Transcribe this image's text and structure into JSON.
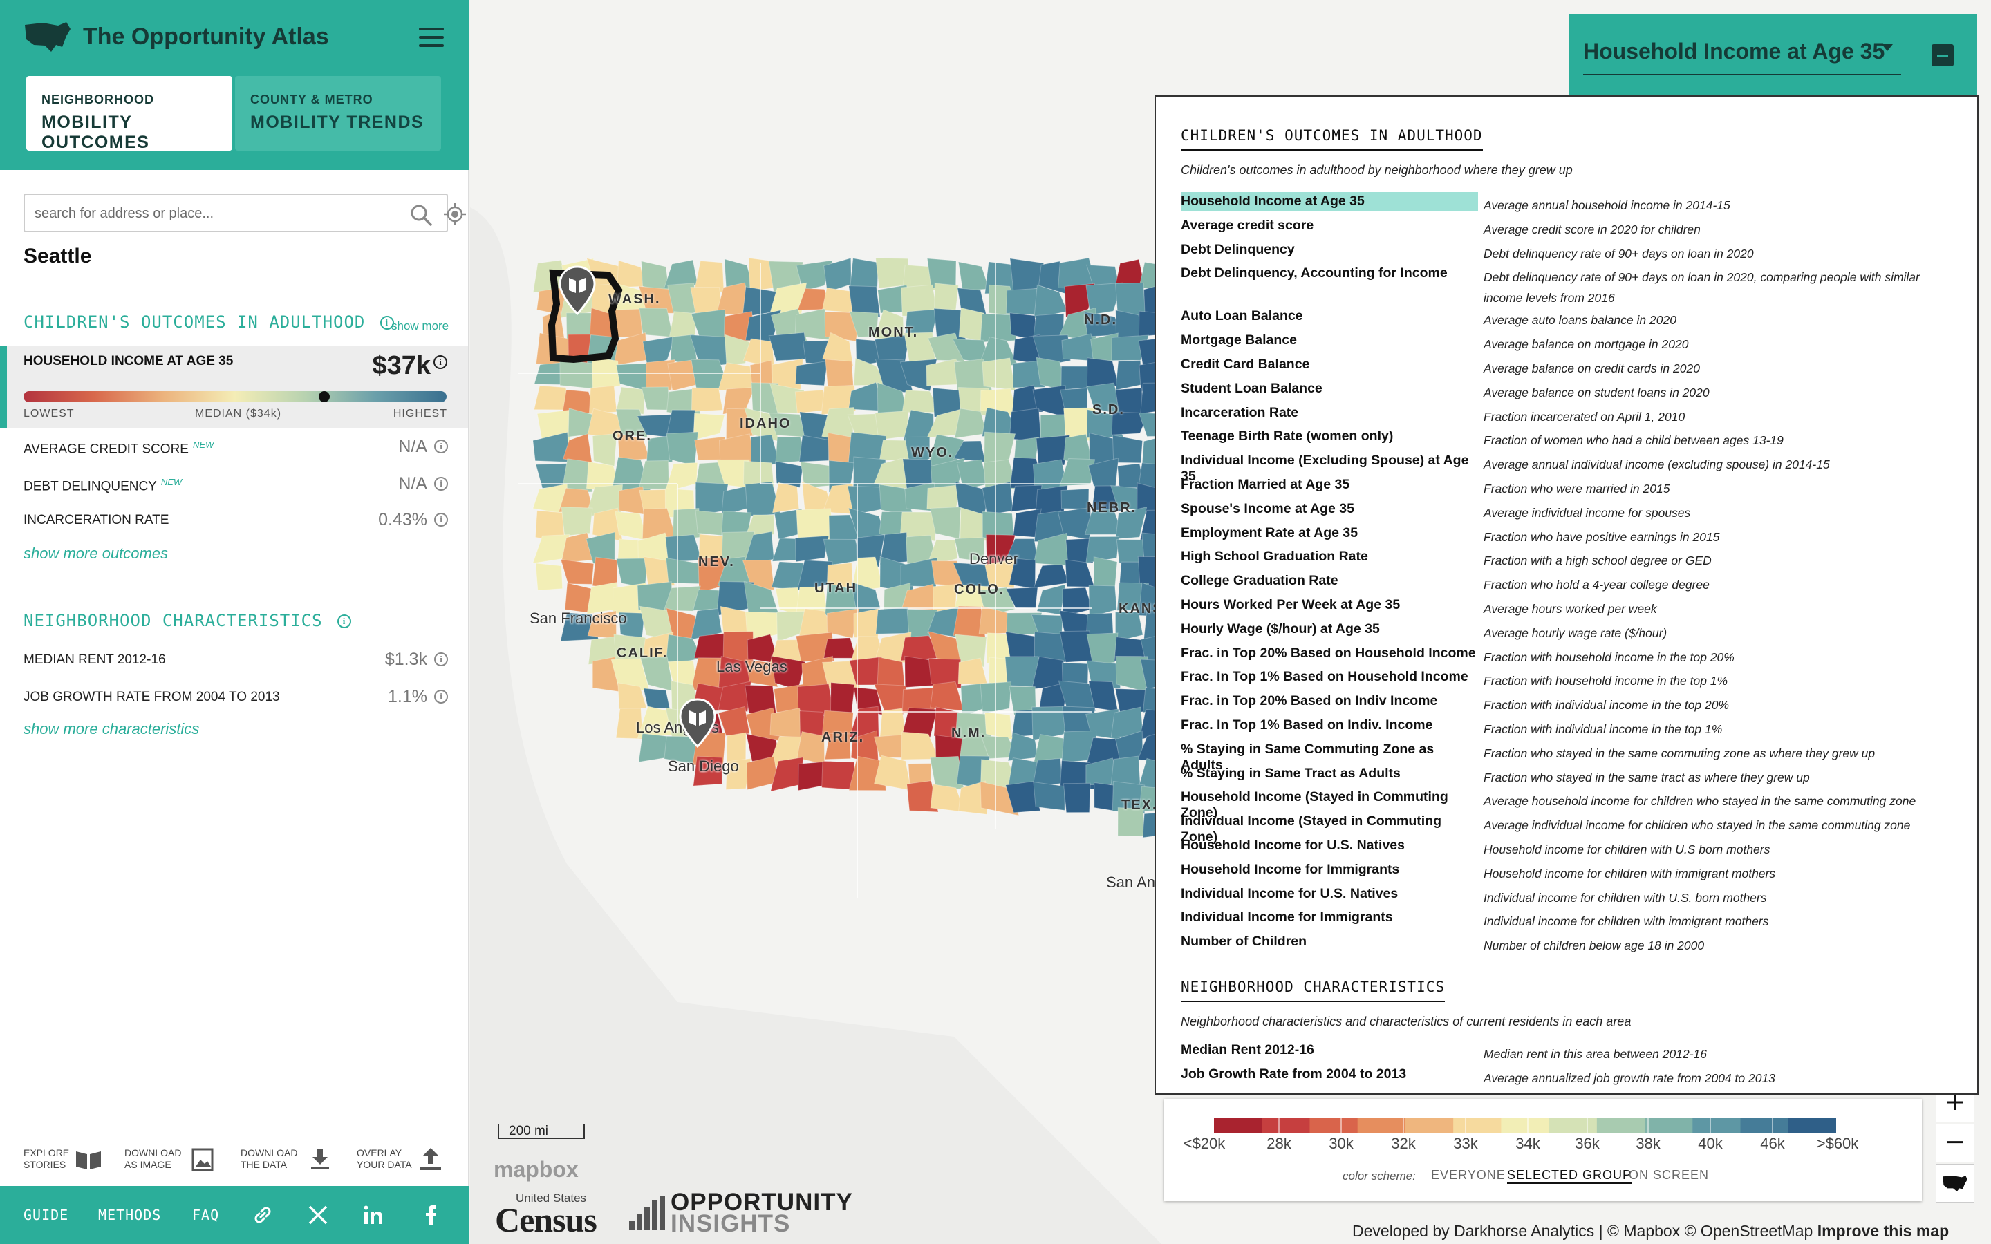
{
  "app": {
    "title": "The Opportunity Atlas",
    "tabs": [
      {
        "small": "NEIGHBORHOOD",
        "big": "MOBILITY OUTCOMES"
      },
      {
        "small": "COUNTY & METRO",
        "big": "MOBILITY TRENDS"
      }
    ]
  },
  "search": {
    "placeholder": "search for address or place...",
    "value": ""
  },
  "place": "Seattle",
  "outcomes": {
    "title": "CHILDREN'S OUTCOMES IN ADULTHOOD",
    "show_more": "show more",
    "selected": {
      "label": "HOUSEHOLD INCOME AT AGE 35",
      "value": "$37k",
      "scale_fraction": 0.71,
      "lowest": "LOWEST",
      "median": "MEDIAN ($34k)",
      "highest": "HIGHEST"
    },
    "rows": [
      {
        "label": "AVERAGE CREDIT SCORE",
        "badge": "NEW",
        "value": "N/A"
      },
      {
        "label": "DEBT DELINQUENCY",
        "badge": "NEW",
        "value": "N/A"
      },
      {
        "label": "INCARCERATION RATE",
        "badge": "",
        "value": "0.43%"
      }
    ],
    "more_link": "show more outcomes"
  },
  "characteristics": {
    "title": "NEIGHBORHOOD CHARACTERISTICS",
    "rows": [
      {
        "label": "MEDIAN RENT 2012-16",
        "value": "$1.3k"
      },
      {
        "label": "JOB GROWTH RATE FROM 2004 TO 2013",
        "value": "1.1%"
      }
    ],
    "more_link": "show more characteristics"
  },
  "tools": [
    {
      "line1": "EXPLORE",
      "line2": "STORIES",
      "icon": "book-map-icon"
    },
    {
      "line1": "DOWNLOAD",
      "line2": "AS IMAGE",
      "icon": "image-download-icon"
    },
    {
      "line1": "DOWNLOAD",
      "line2": "THE DATA",
      "icon": "download-icon"
    },
    {
      "line1": "OVERLAY",
      "line2": "YOUR DATA",
      "icon": "upload-icon"
    }
  ],
  "footer": {
    "guide": "GUIDE",
    "methods": "METHODS",
    "faq": "FAQ"
  },
  "map": {
    "states": [
      "WASH.",
      "MONT.",
      "N.D.",
      "IDAHO",
      "ORE.",
      "WYO.",
      "S.D.",
      "NEBR.",
      "NEV.",
      "UTAH",
      "COLO.",
      "KANS",
      "CALIF.",
      "ARIZ.",
      "N.M.",
      "TEX."
    ],
    "cities": [
      "Denver",
      "San Francisco",
      "Las Vegas",
      "Los Angeles",
      "San Diego",
      "San An"
    ]
  },
  "selector": {
    "title": "Household Income at Age 35"
  },
  "panel": {
    "heading1": "CHILDREN'S OUTCOMES IN ADULTHOOD",
    "sub1": "Children's outcomes in adulthood by neighborhood where they grew up",
    "outcomes": [
      {
        "label": "Household Income at Age 35",
        "desc": "Average annual household income in 2014-15"
      },
      {
        "label": "Average credit score",
        "desc": "Average credit score in 2020 for children"
      },
      {
        "label": "Debt Delinquency",
        "desc": "Debt delinquency rate of 90+ days on loan in 2020"
      },
      {
        "label": "Debt Delinquency, Accounting for Income",
        "desc": "Debt delinquency rate of 90+ days on loan in 2020, comparing people with similar income levels from 2016"
      },
      {
        "label": "Auto Loan Balance",
        "desc": "Average auto loans balance in 2020"
      },
      {
        "label": "Mortgage Balance",
        "desc": "Average balance on mortgage in 2020"
      },
      {
        "label": "Credit Card Balance",
        "desc": "Average balance on credit cards in 2020"
      },
      {
        "label": "Student Loan Balance",
        "desc": "Average balance on student loans in 2020"
      },
      {
        "label": "Incarceration Rate",
        "desc": "Fraction incarcerated on April 1, 2010"
      },
      {
        "label": "Teenage Birth Rate (women only)",
        "desc": "Fraction of women who had a child between ages 13-19"
      },
      {
        "label": "Individual Income (Excluding Spouse) at Age 35",
        "desc": "Average annual individual income (excluding spouse) in 2014-15"
      },
      {
        "label": "Fraction Married at Age 35",
        "desc": "Fraction who were married in 2015"
      },
      {
        "label": "Spouse's Income at Age 35",
        "desc": "Average individual income for spouses"
      },
      {
        "label": "Employment Rate at Age 35",
        "desc": "Fraction who have positive earnings in 2015"
      },
      {
        "label": "High School Graduation Rate",
        "desc": "Fraction with a high school degree or GED"
      },
      {
        "label": "College Graduation Rate",
        "desc": "Fraction who hold a 4-year college degree"
      },
      {
        "label": "Hours Worked Per Week at Age 35",
        "desc": "Average hours worked per week"
      },
      {
        "label": "Hourly Wage ($/hour) at Age 35",
        "desc": "Average hourly wage rate ($/hour)"
      },
      {
        "label": "Frac. in Top 20% Based on Household Income",
        "desc": "Fraction with household income in the top 20%"
      },
      {
        "label": "Frac. In Top 1% Based on Household Income",
        "desc": "Fraction with household income in the top 1%"
      },
      {
        "label": "Frac. in Top 20% Based on Indiv Income",
        "desc": "Fraction with individual income in the top 20%"
      },
      {
        "label": "Frac. In Top 1% Based on Indiv. Income",
        "desc": "Fraction with individual income in the top 1%"
      },
      {
        "label": "% Staying in Same Commuting Zone as Adults",
        "desc": "Fraction who stayed in the same commuting zone as where they grew up"
      },
      {
        "label": "% Staying in Same Tract as Adults",
        "desc": "Fraction who stayed in the same tract as where they grew up"
      },
      {
        "label": "Household Income (Stayed in Commuting Zone)",
        "desc": "Average household income for children who stayed in the same commuting zone"
      },
      {
        "label": "Individual Income (Stayed in Commuting Zone)",
        "desc": "Average individual income for children who stayed in the same commuting zone"
      },
      {
        "label": "Household Income for U.S. Natives",
        "desc": "Household income for children with U.S born mothers"
      },
      {
        "label": "Household Income for Immigrants",
        "desc": "Household income for children with immigrant mothers"
      },
      {
        "label": "Individual Income for U.S. Natives",
        "desc": "Individual income for children with U.S. born mothers"
      },
      {
        "label": "Individual Income for Immigrants",
        "desc": "Individual income for children with immigrant mothers"
      },
      {
        "label": "Number of Children",
        "desc": "Number of children below age 18 in 2000"
      }
    ],
    "heading2": "NEIGHBORHOOD CHARACTERISTICS",
    "sub2": "Neighborhood characteristics and characteristics of current residents in each area",
    "characteristics": [
      {
        "label": "Median Rent 2012-16",
        "desc": "Median rent in this area between 2012-16"
      },
      {
        "label": "Job Growth Rate from 2004 to 2013",
        "desc": "Average annualized job growth rate from 2004 to 2013"
      }
    ]
  },
  "legend": {
    "labels": [
      "<$20k",
      "28k",
      "30k",
      "32k",
      "33k",
      "34k",
      "36k",
      "38k",
      "40k",
      "46k",
      ">$60k"
    ],
    "colors": [
      "#a9232f",
      "#c63f3f",
      "#d9644b",
      "#e68e5e",
      "#efb67e",
      "#f6da9e",
      "#f2eeb6",
      "#d5e2b6",
      "#a8cbb0",
      "#80b3a9",
      "#5e97a4",
      "#457c98",
      "#2f5f88"
    ],
    "scheme_label": "color scheme:",
    "schemes": [
      "EVERYONE",
      "SELECTED GROUP",
      "ON SCREEN"
    ],
    "selected_scheme": "SELECTED GROUP"
  },
  "scale_text": "200 mi",
  "logos": {
    "mapbox": "mapbox",
    "census_top": "United States",
    "census": "Census",
    "oi_line1": "OPPORTUNITY",
    "oi_line2": "INSIGHTS"
  },
  "attribution": {
    "text": "Developed by Darkhorse Analytics | © Mapbox © OpenStreetMap",
    "improve": "Improve this map"
  }
}
